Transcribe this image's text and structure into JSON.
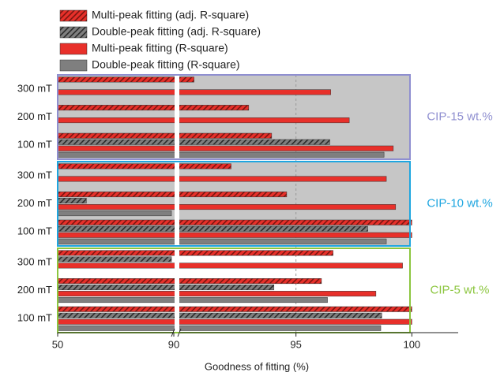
{
  "chart_data": {
    "type": "bar",
    "orientation": "horizontal",
    "x_label": "Goodness of fitting (%)",
    "xlim": [
      50,
      102
    ],
    "x_break": 90,
    "xticks": [
      50,
      90,
      95,
      100
    ],
    "reference_line": 95,
    "legend": "top-left",
    "categories": [
      "300 mT",
      "200 mT",
      "100 mT",
      "300 mT",
      "200 mT",
      "100 mT",
      "300 mT",
      "200 mT",
      "100 mT"
    ],
    "groups": [
      {
        "label": "CIP-15 wt.%",
        "color": "#8f8fd0",
        "background": "#c6c6c6",
        "size": 3
      },
      {
        "label": "CIP-10 wt.%",
        "color": "#1ea6e0",
        "background": "#c6c6c6",
        "size": 3
      },
      {
        "label": "CIP-5 wt.%",
        "color": "#8cc63f",
        "background": "#ffffff",
        "size": 3
      }
    ],
    "series": [
      {
        "name": "Multi-peak fitting (adj. R-square)",
        "color": "#e8302a",
        "pattern": "hatch",
        "values": [
          90.6,
          92.96,
          93.95,
          92.2,
          94.6,
          100,
          96.6,
          96.1,
          100
        ]
      },
      {
        "name": "Double-peak fitting (adj. R-square)",
        "color": "#7f7f7f",
        "pattern": "hatch",
        "values": [
          null,
          null,
          96.46,
          null,
          59.9,
          98.1,
          89.2,
          94.05,
          98.7
        ]
      },
      {
        "name": "Multi-peak fitting (R-square)",
        "color": "#e8302a",
        "pattern": "solid",
        "values": [
          96.5,
          97.3,
          99.2,
          98.9,
          99.3,
          100,
          99.6,
          98.45,
          100
        ]
      },
      {
        "name": "Double-peak fitting (R-square)",
        "color": "#7f7f7f",
        "pattern": "solid",
        "values": [
          null,
          null,
          98.8,
          null,
          89.2,
          98.9,
          null,
          96.36,
          98.66
        ]
      }
    ]
  }
}
